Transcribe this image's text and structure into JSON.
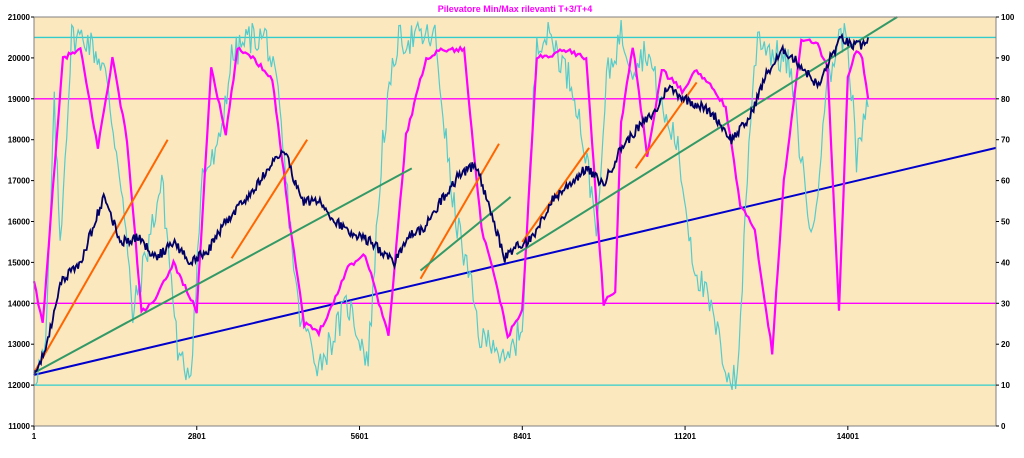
{
  "chart_data": {
    "type": "line",
    "title": "Pilevatore Min/Max rilevanti T+3/T+4",
    "xlabel": "",
    "ylabel": "",
    "xlim": [
      1,
      16550
    ],
    "ylim": [
      11000,
      21000
    ],
    "y2lim": [
      0,
      100
    ],
    "x_ticks": [
      "1",
      "2801",
      "5601",
      "8401",
      "11201",
      "14001"
    ],
    "x_tick_values": [
      1,
      2801,
      5601,
      8401,
      11201,
      14001
    ],
    "y_ticks": [
      "11000",
      "12000",
      "13000",
      "14000",
      "15000",
      "16000",
      "17000",
      "18000",
      "19000",
      "20000",
      "21000"
    ],
    "y2_ticks": [
      "0",
      "10",
      "20",
      "30",
      "40",
      "50",
      "60",
      "70",
      "80",
      "90",
      "100"
    ],
    "grid": false,
    "legend": "none",
    "background": "#fbe8bf",
    "colors": {
      "price": "#000066",
      "oscillator_magenta": "#ff00ff",
      "oscillator_cyan": "#55cccc",
      "trend_orange": "#ff6600",
      "trend_green": "#339966",
      "trend_blue": "#0000cc",
      "level_magenta": "#ff00ff",
      "level_cyan": "#33cccc"
    },
    "horizontal_levels_right_axis": [
      {
        "value": 95,
        "color": "#33cccc"
      },
      {
        "value": 80,
        "color": "#ff00ff"
      },
      {
        "value": 30,
        "color": "#ff00ff"
      },
      {
        "value": 10,
        "color": "#33cccc"
      }
    ],
    "price_series": {
      "axis": "left",
      "x": [
        1,
        200,
        450,
        800,
        1200,
        1500,
        1800,
        2100,
        2400,
        2700,
        3000,
        3300,
        3600,
        3900,
        4300,
        4600,
        4900,
        5200,
        5500,
        5800,
        6200,
        6500,
        6700,
        7000,
        7300,
        7600,
        7900,
        8100,
        8300,
        8600,
        8900,
        9200,
        9500,
        9800,
        10100,
        10400,
        10700,
        10900,
        11200,
        11500,
        11700,
        12000,
        12300,
        12600,
        12900,
        13200,
        13500,
        13700,
        13900,
        14050,
        14250,
        14350
      ],
      "y": [
        12300,
        12800,
        14500,
        15000,
        16600,
        15500,
        15600,
        15100,
        15500,
        15000,
        15300,
        16000,
        16500,
        17000,
        17800,
        16500,
        16500,
        16000,
        15700,
        15500,
        15000,
        15700,
        15800,
        16500,
        17100,
        17400,
        16000,
        15100,
        15400,
        15600,
        16500,
        16900,
        17300,
        16900,
        17800,
        18300,
        18700,
        19300,
        19000,
        18800,
        18600,
        18000,
        18500,
        19600,
        20200,
        19800,
        19300,
        20000,
        20500,
        20300,
        20300,
        20500
      ]
    },
    "oscillator_magenta": {
      "axis": "right",
      "x": [
        1,
        150,
        500,
        800,
        1100,
        1350,
        1600,
        1850,
        2050,
        2200,
        2400,
        2800,
        3050,
        3300,
        3500,
        3700,
        4100,
        4400,
        4650,
        4900,
        5150,
        5400,
        5700,
        6100,
        6400,
        6750,
        7000,
        7400,
        7700,
        7950,
        8150,
        8400,
        8650,
        8950,
        9150,
        9500,
        9800,
        10000,
        10100,
        10300,
        10550,
        10800,
        11150,
        11400,
        11700,
        11900,
        12150,
        12400,
        12700,
        12900,
        13200,
        13450,
        13650,
        13850,
        14000,
        14150,
        14250,
        14350
      ],
      "y": [
        35,
        25,
        90,
        92,
        68,
        90,
        70,
        28,
        30,
        34,
        40,
        28,
        88,
        71,
        92,
        91,
        85,
        50,
        25,
        23,
        30,
        39,
        42,
        22,
        71,
        90,
        92,
        92,
        48,
        35,
        22,
        28,
        90,
        91,
        92,
        90,
        30,
        33,
        74,
        93,
        66,
        87,
        82,
        87,
        82,
        78,
        54,
        48,
        18,
        60,
        94,
        94,
        88,
        28,
        85,
        92,
        90,
        80
      ]
    },
    "oscillator_cyan": {
      "axis": "right",
      "x": [
        1,
        200,
        350,
        450,
        650,
        900,
        1200,
        1500,
        1700,
        1900,
        2200,
        2500,
        2700,
        2900,
        3150,
        3400,
        3700,
        4000,
        4200,
        4550,
        4900,
        5150,
        5400,
        5750,
        6000,
        6250,
        6550,
        6900,
        7200,
        7500,
        7700,
        7900,
        8100,
        8400,
        8650,
        8900,
        9300,
        9700,
        9850,
        10100,
        10300,
        10550,
        10850,
        11050,
        11350,
        11650,
        11950,
        12100,
        12300,
        12450,
        12650,
        13000,
        13250,
        13400,
        13600,
        13850,
        14000,
        14150,
        14300,
        14350
      ],
      "y": [
        12,
        18,
        78,
        45,
        95,
        95,
        88,
        60,
        27,
        40,
        60,
        15,
        14,
        62,
        66,
        90,
        95,
        95,
        80,
        28,
        15,
        22,
        30,
        16,
        70,
        94,
        95,
        95,
        55,
        35,
        20,
        22,
        14,
        25,
        95,
        95,
        82,
        48,
        85,
        96,
        88,
        92,
        75,
        70,
        40,
        28,
        12,
        11,
        70,
        96,
        92,
        88,
        60,
        45,
        80,
        95,
        95,
        65,
        75,
        78
      ]
    },
    "trend_lines": [
      {
        "name": "",
        "color": "#ff6600",
        "points": [
          [
            1,
            12300
          ],
          [
            2300,
            18000
          ]
        ]
      },
      {
        "name": "",
        "color": "#ff6600",
        "points": [
          [
            3400,
            15100
          ],
          [
            4700,
            18000
          ]
        ]
      },
      {
        "name": "",
        "color": "#ff6600",
        "points": [
          [
            6650,
            14600
          ],
          [
            8000,
            17900
          ]
        ]
      },
      {
        "name": "",
        "color": "#ff6600",
        "points": [
          [
            8400,
            15500
          ],
          [
            9550,
            17800
          ]
        ]
      },
      {
        "name": "",
        "color": "#ff6600",
        "points": [
          [
            10350,
            17300
          ],
          [
            11400,
            19400
          ]
        ]
      },
      {
        "name": "",
        "color": "#339966",
        "points": [
          [
            1,
            12300
          ],
          [
            6500,
            17300
          ]
        ]
      },
      {
        "name": "",
        "color": "#339966",
        "points": [
          [
            6650,
            14800
          ],
          [
            8200,
            16600
          ]
        ]
      },
      {
        "name": "",
        "color": "#339966",
        "points": [
          [
            8300,
            15200
          ],
          [
            14850,
            21000
          ]
        ]
      },
      {
        "name": "",
        "color": "#0000cc",
        "points": [
          [
            1,
            12250
          ],
          [
            16550,
            17800
          ]
        ]
      }
    ]
  }
}
